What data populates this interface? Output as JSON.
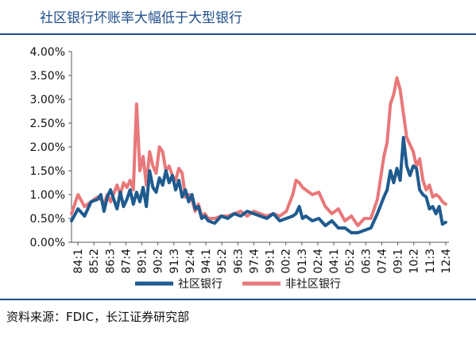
{
  "page": {
    "title": "社区银行坏账率大幅低于大型银行",
    "source": "资料来源：FDIC，长江证券研究部"
  },
  "chart_data": {
    "type": "line",
    "title": "社区银行坏账率大幅低于大型银行",
    "ylim": [
      0,
      4
    ],
    "y_ticks": [
      "0.00%",
      "0.50%",
      "1.00%",
      "1.50%",
      "2.00%",
      "2.50%",
      "3.00%",
      "3.50%",
      "4.00%"
    ],
    "y_tick_values": [
      0,
      0.5,
      1,
      1.5,
      2,
      2.5,
      3,
      3.5,
      4
    ],
    "x_tick_labels": [
      "84:1",
      "85:2",
      "86:3",
      "87:4",
      "89:1",
      "90:2",
      "91:3",
      "92:4",
      "94:1",
      "95:2",
      "96:3",
      "97:4",
      "99:1",
      "00:2",
      "01:3",
      "02:4",
      "04:1",
      "05:2",
      "06:3",
      "07:4",
      "09:1",
      "10:2",
      "11:3",
      "12:4"
    ],
    "x_start": 1984.0,
    "x_end": 2013.0,
    "legend_placement": "bottom",
    "series": [
      {
        "name": "社区银行",
        "color": "#1f5b8f",
        "x": [
          1984.0,
          1984.5,
          1985.0,
          1985.5,
          1986.0,
          1986.25,
          1986.5,
          1986.75,
          1987.0,
          1987.5,
          1987.75,
          1988.0,
          1988.25,
          1988.5,
          1988.75,
          1989.0,
          1989.25,
          1989.5,
          1989.75,
          1990.0,
          1990.25,
          1990.5,
          1990.75,
          1991.0,
          1991.25,
          1991.5,
          1991.75,
          1992.0,
          1992.25,
          1992.5,
          1992.75,
          1993.0,
          1993.25,
          1993.5,
          1993.75,
          1994.0,
          1994.25,
          1994.5,
          1995.0,
          1995.5,
          1996.0,
          1996.5,
          1997.0,
          1997.5,
          1998.0,
          1998.5,
          1999.0,
          1999.5,
          2000.0,
          2000.5,
          2001.0,
          2001.25,
          2001.5,
          2001.75,
          2002.0,
          2002.5,
          2003.0,
          2003.5,
          2004.0,
          2004.5,
          2005.0,
          2005.5,
          2006.0,
          2006.5,
          2007.0,
          2007.5,
          2008.0,
          2008.25,
          2008.5,
          2008.75,
          2009.0,
          2009.25,
          2009.5,
          2009.75,
          2010.0,
          2010.25,
          2010.5,
          2010.75,
          2011.0,
          2011.25,
          2011.5,
          2011.75,
          2012.0,
          2012.25,
          2012.5,
          2012.75
        ],
        "y": [
          0.45,
          0.7,
          0.55,
          0.85,
          0.9,
          1.0,
          0.65,
          0.95,
          1.1,
          0.7,
          1.05,
          0.75,
          0.9,
          1.1,
          0.8,
          1.05,
          0.85,
          1.15,
          0.75,
          1.5,
          1.15,
          1.05,
          1.35,
          1.2,
          1.5,
          1.25,
          1.4,
          1.1,
          1.3,
          0.95,
          1.1,
          0.85,
          1.0,
          0.7,
          0.75,
          0.5,
          0.55,
          0.45,
          0.4,
          0.55,
          0.5,
          0.6,
          0.55,
          0.65,
          0.6,
          0.55,
          0.5,
          0.6,
          0.45,
          0.5,
          0.55,
          0.6,
          0.75,
          0.5,
          0.55,
          0.45,
          0.5,
          0.35,
          0.45,
          0.3,
          0.3,
          0.2,
          0.2,
          0.25,
          0.3,
          0.6,
          0.95,
          1.1,
          1.5,
          1.25,
          1.55,
          1.3,
          2.2,
          1.6,
          1.4,
          1.6,
          1.55,
          1.1,
          1.0,
          0.95,
          0.7,
          0.75,
          0.6,
          0.75,
          0.38,
          0.42
        ]
      },
      {
        "name": "非社区银行",
        "color": "#e8787a",
        "x": [
          1984.0,
          1984.5,
          1985.0,
          1985.5,
          1986.0,
          1986.25,
          1986.5,
          1986.75,
          1987.0,
          1987.5,
          1987.75,
          1988.0,
          1988.25,
          1988.5,
          1988.75,
          1989.0,
          1989.25,
          1989.5,
          1989.75,
          1990.0,
          1990.25,
          1990.5,
          1990.75,
          1991.0,
          1991.25,
          1991.5,
          1991.75,
          1992.0,
          1992.25,
          1992.5,
          1992.75,
          1993.0,
          1993.25,
          1993.5,
          1993.75,
          1994.0,
          1994.25,
          1994.5,
          1995.0,
          1995.5,
          1996.0,
          1996.5,
          1997.0,
          1997.5,
          1998.0,
          1998.5,
          1999.0,
          1999.5,
          2000.0,
          2000.5,
          2001.0,
          2001.25,
          2001.5,
          2001.75,
          2002.0,
          2002.5,
          2003.0,
          2003.5,
          2004.0,
          2004.5,
          2005.0,
          2005.5,
          2006.0,
          2006.5,
          2007.0,
          2007.5,
          2008.0,
          2008.25,
          2008.5,
          2008.75,
          2009.0,
          2009.25,
          2009.5,
          2009.75,
          2010.0,
          2010.25,
          2010.5,
          2010.75,
          2011.0,
          2011.25,
          2011.5,
          2011.75,
          2012.0,
          2012.25,
          2012.5,
          2012.75
        ],
        "y": [
          0.6,
          1.0,
          0.75,
          0.85,
          0.95,
          0.9,
          0.8,
          1.0,
          0.85,
          1.2,
          1.0,
          1.25,
          1.15,
          1.3,
          1.1,
          2.9,
          1.5,
          1.8,
          1.2,
          1.9,
          1.6,
          1.45,
          2.0,
          1.9,
          1.5,
          1.6,
          1.4,
          1.3,
          1.55,
          1.45,
          0.95,
          1.0,
          0.9,
          0.65,
          0.8,
          0.55,
          0.6,
          0.5,
          0.5,
          0.55,
          0.55,
          0.6,
          0.65,
          0.55,
          0.65,
          0.6,
          0.55,
          0.6,
          0.55,
          0.65,
          1.0,
          1.3,
          1.25,
          1.15,
          1.1,
          1.0,
          1.05,
          0.75,
          0.6,
          0.7,
          0.45,
          0.55,
          0.35,
          0.5,
          0.5,
          0.9,
          1.8,
          2.1,
          2.9,
          3.1,
          3.45,
          3.2,
          2.7,
          2.2,
          2.05,
          1.9,
          1.6,
          1.75,
          1.3,
          1.1,
          1.2,
          0.95,
          1.0,
          0.95,
          0.85,
          0.8
        ]
      }
    ]
  }
}
